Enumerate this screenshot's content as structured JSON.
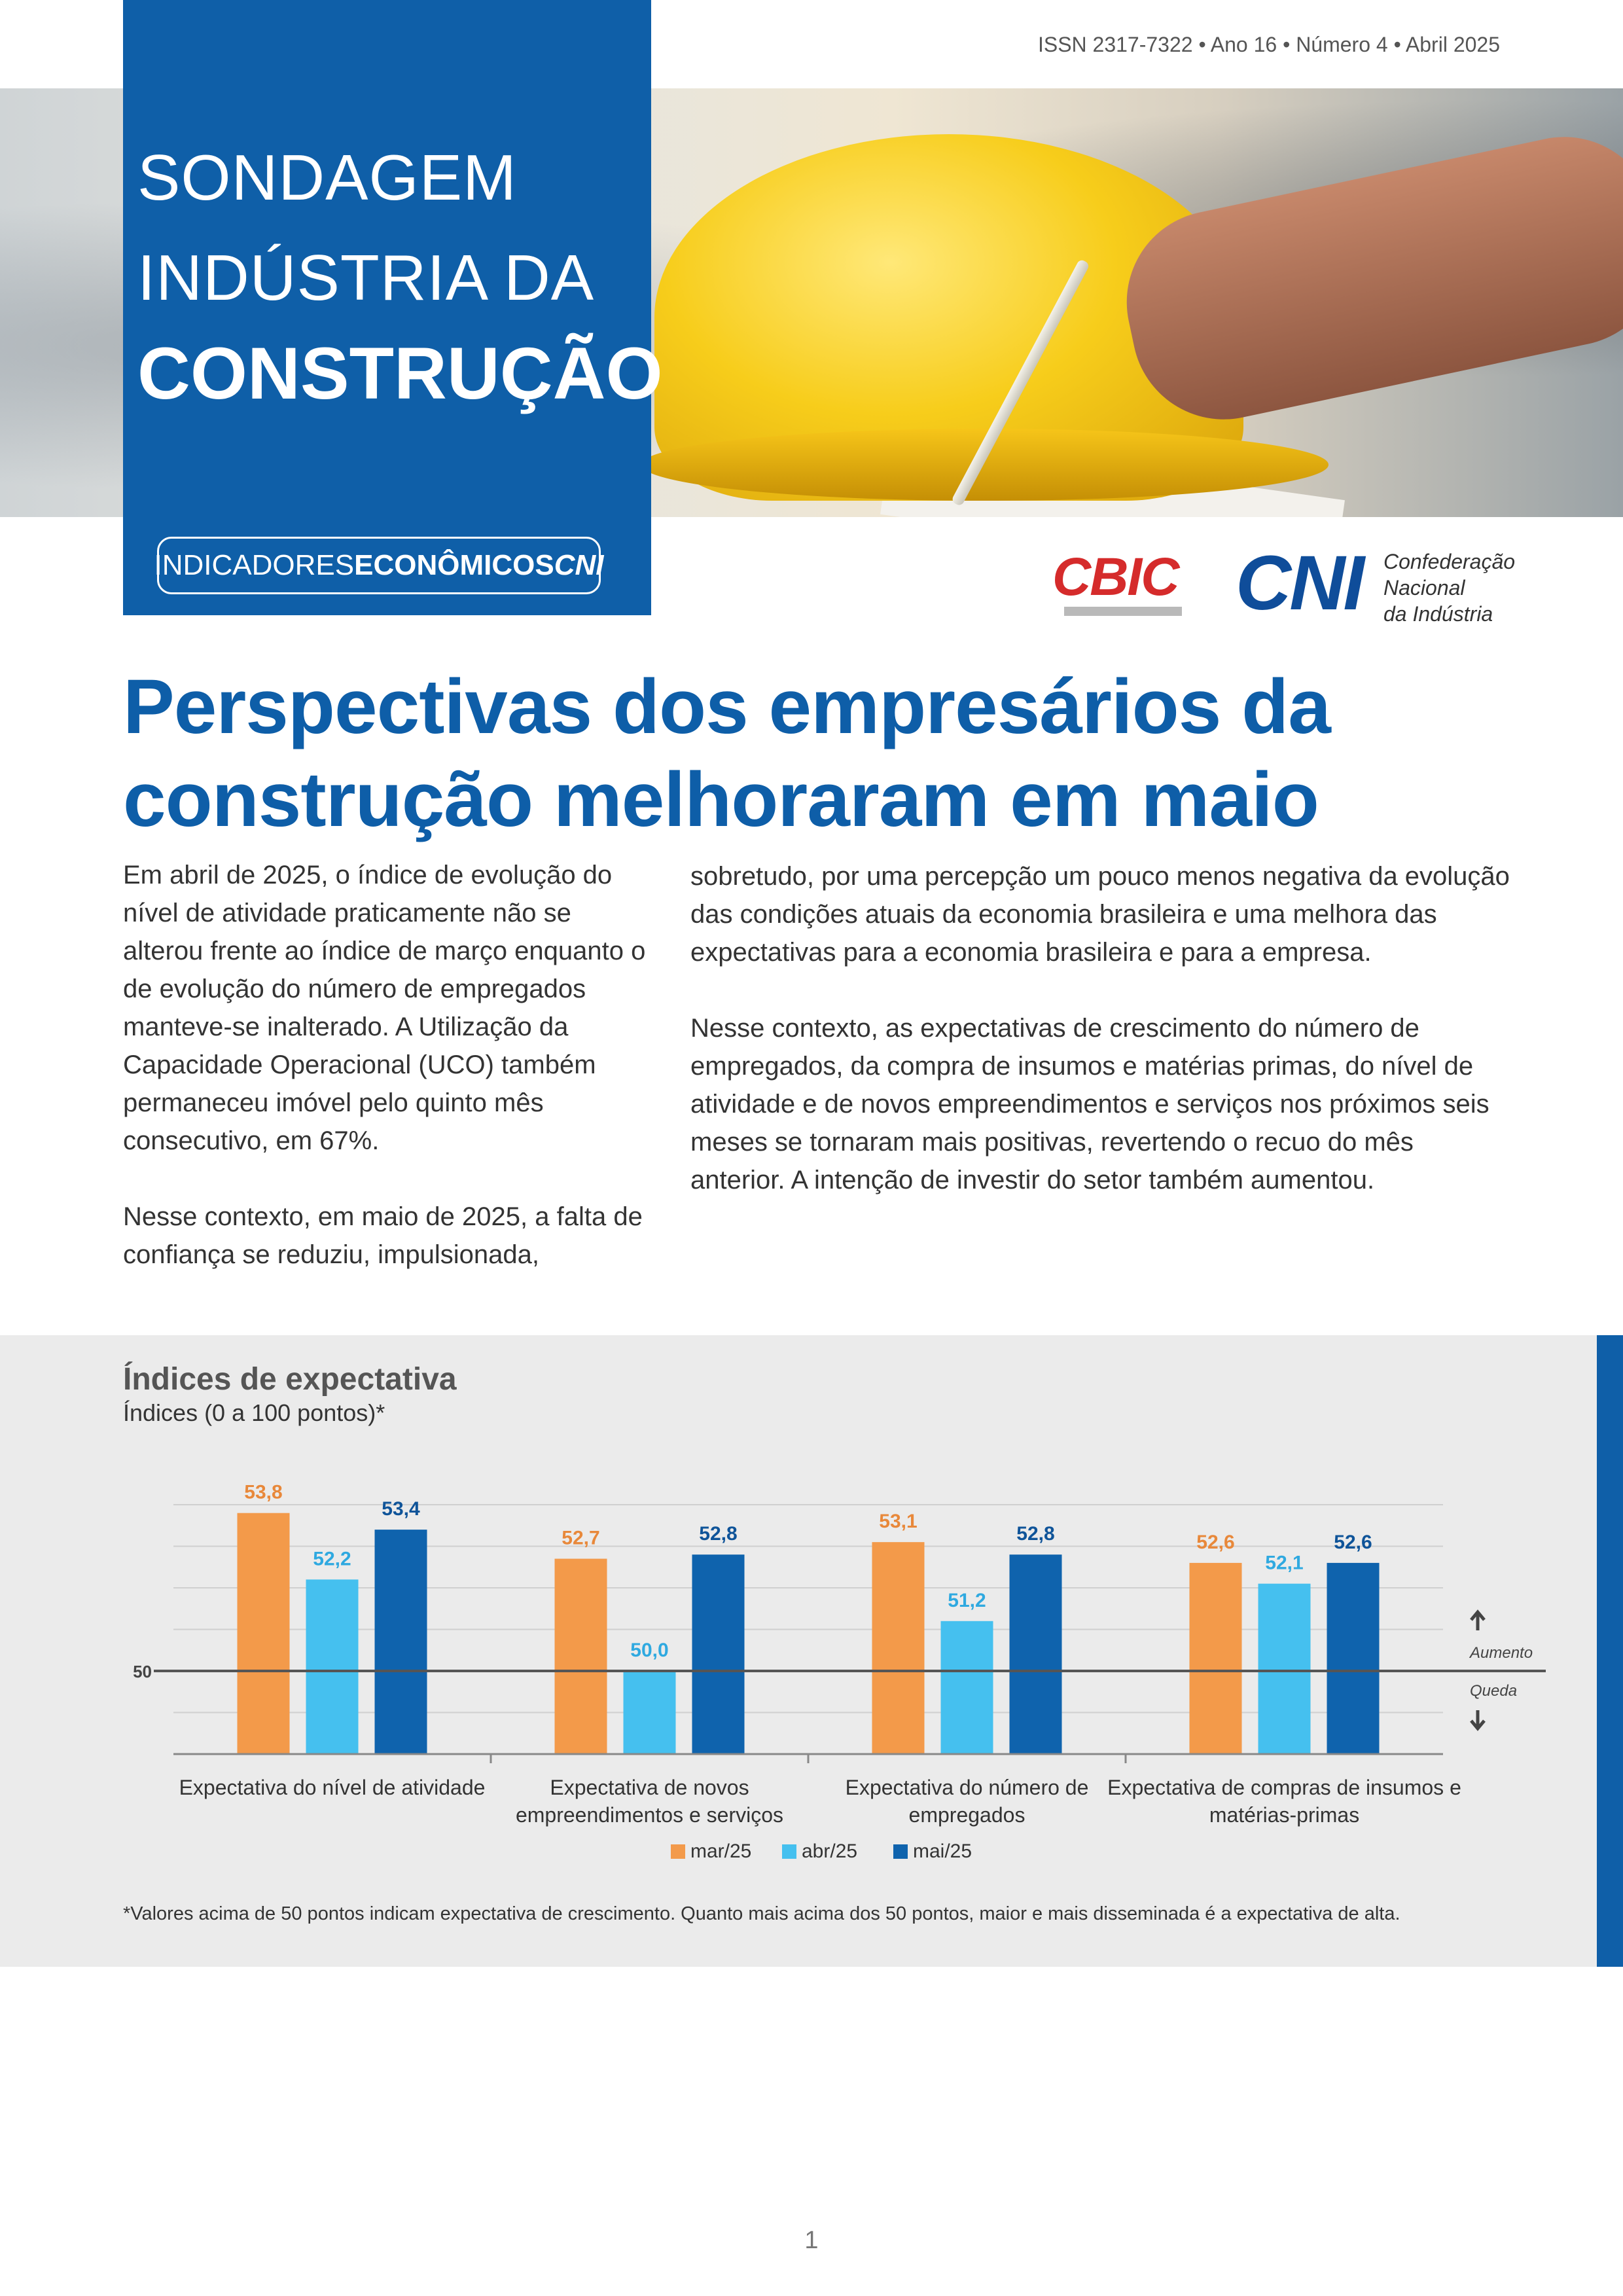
{
  "issue": "ISSN 2317-7322 • Ano 16 • Número 4 • Abril 2025",
  "header": {
    "title_line1": "SONDAGEM",
    "title_line2": "INDÚSTRIA DA",
    "title_line3": "CONSTRUÇÃO",
    "series_part1": "INDICADORES",
    "series_part2": "ECONÔMICOS",
    "series_part3": "CNI"
  },
  "logos": {
    "cbic": "CBIC",
    "cni": "CNI",
    "cni_name_line1": "Confederação",
    "cni_name_line2": "Nacional",
    "cni_name_line3": "da Indústria"
  },
  "headline_line1": "Perspectivas dos empresários da",
  "headline_line2": "construção melhoraram em maio",
  "body": {
    "p1": "Em abril de 2025, o índice de evolução do nível de atividade praticamente não se alterou frente ao índice de março enquanto o de evolução do número de empregados manteve-se inalterado. A  Utilização da Capacidade Operacional (UCO) também permaneceu imóvel pelo quinto mês consecutivo, em 67%.",
    "p2": "Nesse contexto, em maio de 2025, a falta de confiança se reduziu, impulsionada,",
    "p3": "sobretudo, por uma percepção um pouco menos negativa da evolução das condições atuais da economia brasileira e uma melhora das expectativas para a economia brasileira e para a empresa.",
    "p4": "Nesse contexto, as expectativas de crescimento do número de empregados, da compra de insumos e matérias primas, do nível de atividade e de novos empreendimentos e serviços nos próximos seis meses se tornaram mais positivas, revertendo o recuo do mês anterior. A intenção de investir do setor também aumentou."
  },
  "chart_section": {
    "title": "Índices de expectativa",
    "subtitle": "Índices (0 a 100 pontos)*",
    "footnote": "*Valores acima de 50 pontos indicam expectativa de crescimento. Quanto mais acima dos 50 pontos, maior e mais disseminada é a expectativa de alta."
  },
  "chart_data": {
    "type": "bar",
    "title": "Índices de expectativa",
    "ylabel": "Índices (0 a 100 pontos)*",
    "categories": [
      [
        "Expectativa do nível de atividade"
      ],
      [
        "Expectativa de novos",
        "empreendimentos e serviços"
      ],
      [
        "Expectativa do número de",
        "empregados"
      ],
      [
        "Expectativa de compras de insumos e",
        "matérias-primas"
      ]
    ],
    "series": [
      {
        "name": "mar/25",
        "color": "#f39a4a",
        "label_color": "#e8883a",
        "values": [
          53.8,
          52.7,
          53.1,
          52.6
        ],
        "labels": [
          "53,8",
          "52,7",
          "53,1",
          "52,6"
        ]
      },
      {
        "name": "abr/25",
        "color": "#45c0ef",
        "label_color": "#2fa9e0",
        "values": [
          52.2,
          50.0,
          51.2,
          52.1
        ],
        "labels": [
          "52,2",
          "50,0",
          "51,2",
          "52,1"
        ]
      },
      {
        "name": "mai/25",
        "color": "#0f63ad",
        "label_color": "#0f5499",
        "values": [
          53.4,
          52.8,
          52.8,
          52.6
        ],
        "labels": [
          "53,4",
          "52,8",
          "52,8",
          "52,6"
        ]
      }
    ],
    "reference_line": {
      "value": 50,
      "label": "50"
    },
    "ylim": [
      48,
      54.5
    ],
    "grid": true,
    "annotations": {
      "up": "Aumento",
      "down": "Queda"
    }
  },
  "page_number": "1"
}
